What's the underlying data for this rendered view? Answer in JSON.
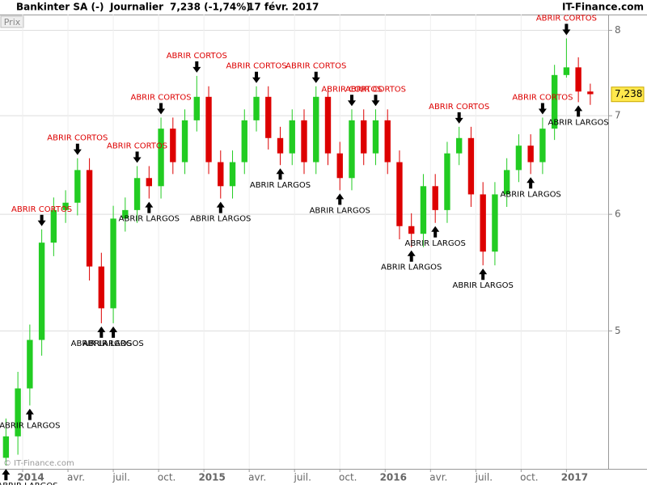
{
  "chart_data": {
    "type": "candlestick",
    "title": "Bankinter SA (-)",
    "period": "Journalier",
    "last": "7,238 (-1,74%)",
    "date": "17 févr. 2017",
    "source": "IT-Finance.com",
    "watermark": "© IT-Finance.com",
    "ylabel": "Prix",
    "log_scale": true,
    "grid": true,
    "up_color": "#22cc22",
    "down_color": "#dd0000",
    "ylim": [
      4.03,
      8.2
    ],
    "yticks": [
      5,
      6,
      7,
      8
    ],
    "xlim": [
      -0.5,
      50.5
    ],
    "xticks": [
      {
        "value": 1.4,
        "label": "2014"
      },
      {
        "value": 5.2,
        "label": "avr."
      },
      {
        "value": 9.0,
        "label": "juil."
      },
      {
        "value": 12.8,
        "label": "oct."
      },
      {
        "value": 16.6,
        "label": "2015"
      },
      {
        "value": 20.4,
        "label": "avr."
      },
      {
        "value": 24.2,
        "label": "juil."
      },
      {
        "value": 28.0,
        "label": "oct."
      },
      {
        "value": 31.8,
        "label": "2016"
      },
      {
        "value": 35.6,
        "label": "avr."
      },
      {
        "value": 39.4,
        "label": "juil."
      },
      {
        "value": 43.2,
        "label": "oct."
      },
      {
        "value": 47.0,
        "label": "2017"
      }
    ],
    "current_price": {
      "value": 7.238,
      "label": "7,238"
    },
    "open": [
      4.1,
      4.24,
      4.57,
      4.93,
      5.74,
      6.04,
      6.11,
      6.43,
      5.53,
      5.18,
      5.96,
      6.04,
      6.35,
      6.27,
      6.86,
      6.51,
      6.95,
      7.21,
      6.51,
      6.27,
      6.51,
      6.95,
      7.21,
      6.76,
      6.6,
      6.95,
      6.51,
      7.21,
      6.6,
      6.35,
      6.95,
      6.6,
      6.95,
      6.51,
      5.89,
      5.82,
      6.27,
      6.04,
      6.6,
      6.76,
      6.19,
      5.66,
      6.19,
      6.43,
      6.68,
      6.51,
      6.86,
      7.46,
      7.55,
      7.27
    ],
    "high": [
      4.36,
      4.69,
      5.05,
      5.86,
      6.16,
      6.23,
      6.55,
      6.55,
      5.65,
      6.08,
      6.16,
      6.47,
      6.47,
      6.98,
      6.98,
      7.07,
      7.45,
      7.33,
      6.63,
      6.63,
      7.07,
      7.33,
      7.33,
      6.88,
      7.07,
      7.07,
      7.33,
      7.33,
      6.72,
      7.07,
      7.07,
      7.07,
      7.07,
      6.63,
      6.01,
      6.39,
      6.39,
      6.72,
      6.88,
      6.88,
      6.31,
      6.31,
      6.55,
      6.8,
      6.8,
      6.98,
      7.58,
      7.9,
      7.67,
      7.36
    ],
    "low": [
      4.05,
      4.12,
      4.45,
      4.81,
      5.62,
      5.92,
      5.99,
      5.41,
      5.06,
      5.06,
      5.84,
      5.92,
      6.15,
      6.15,
      6.39,
      6.39,
      6.83,
      6.39,
      6.15,
      6.15,
      6.39,
      6.83,
      6.64,
      6.48,
      6.48,
      6.39,
      6.39,
      6.48,
      6.23,
      6.23,
      6.48,
      6.48,
      6.39,
      5.77,
      5.7,
      5.7,
      5.92,
      5.92,
      6.48,
      6.07,
      5.54,
      5.54,
      6.07,
      6.31,
      6.39,
      6.39,
      6.74,
      7.43,
      7.15,
      7.12
    ],
    "close": [
      4.24,
      4.57,
      4.93,
      5.74,
      6.04,
      6.11,
      6.43,
      5.53,
      5.18,
      5.96,
      6.04,
      6.35,
      6.27,
      6.86,
      6.51,
      6.95,
      7.21,
      6.51,
      6.27,
      6.51,
      6.95,
      7.21,
      6.76,
      6.6,
      6.95,
      6.51,
      7.21,
      6.6,
      6.35,
      6.95,
      6.6,
      6.95,
      6.51,
      5.89,
      5.82,
      6.27,
      6.04,
      6.6,
      6.76,
      6.19,
      5.66,
      6.19,
      6.43,
      6.68,
      6.51,
      6.86,
      7.46,
      7.55,
      7.27,
      7.24
    ],
    "signals": [
      {
        "label": "ABRIR CORTOS",
        "side": "short",
        "candle": 3
      },
      {
        "label": "ABRIR CORTOS",
        "side": "short",
        "candle": 6
      },
      {
        "label": "ABRIR CORTOS",
        "side": "short",
        "candle": 11
      },
      {
        "label": "ABRIR CORTOS",
        "side": "short",
        "candle": 13
      },
      {
        "label": "ABRIR CORTOS",
        "side": "short",
        "candle": 16
      },
      {
        "label": "ABRIR CORTOS",
        "side": "short",
        "candle": 21
      },
      {
        "label": "ABRIR CORTOS",
        "side": "short",
        "candle": 26
      },
      {
        "label": "ABRIR CORTOS",
        "side": "short",
        "candle": 29
      },
      {
        "label": "ABRIR CORTOS",
        "side": "short",
        "candle": 31
      },
      {
        "label": "ABRIR CORTOS",
        "side": "short",
        "candle": 38
      },
      {
        "label": "ABRIR CORTOS",
        "side": "short",
        "candle": 45
      },
      {
        "label": "ABRIR CORTOS",
        "side": "short",
        "candle": 47
      },
      {
        "label": "ABRIR LARGOS",
        "side": "long",
        "candle": 0
      },
      {
        "label": "ABRIR LARGOS",
        "side": "long",
        "candle": 2
      },
      {
        "label": "ABRIR LARGOS",
        "side": "long",
        "candle": 8
      },
      {
        "label": "ABRIR LARGOS",
        "side": "long",
        "candle": 9
      },
      {
        "label": "ABRIR LARGOS",
        "side": "long",
        "candle": 12
      },
      {
        "label": "ABRIR LARGOS",
        "side": "long",
        "candle": 18
      },
      {
        "label": "ABRIR LARGOS",
        "side": "long",
        "candle": 23
      },
      {
        "label": "ABRIR LARGOS",
        "side": "long",
        "candle": 28
      },
      {
        "label": "ABRIR LARGOS",
        "side": "long",
        "candle": 34
      },
      {
        "label": "ABRIR LARGOS",
        "side": "long",
        "candle": 36
      },
      {
        "label": "ABRIR LARGOS",
        "side": "long",
        "candle": 40
      },
      {
        "label": "ABRIR LARGOS",
        "side": "long",
        "candle": 44
      },
      {
        "label": "ABRIR LARGOS",
        "side": "long",
        "candle": 48
      }
    ]
  }
}
